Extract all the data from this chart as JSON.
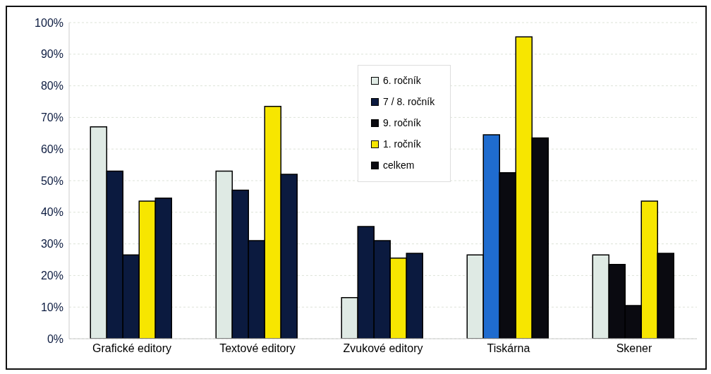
{
  "chart_data": {
    "type": "bar",
    "categories": [
      "Grafické editory",
      "Textové editory",
      "Zvukové editory",
      "Tiskárna",
      "Skener"
    ],
    "series": [
      {
        "name": "6. ročník",
        "color": "#dfeae4",
        "values": [
          67,
          53,
          13,
          26.5,
          26.5
        ]
      },
      {
        "name": "7 / 8. ročník",
        "color": "#0b1a3f",
        "colors": [
          "#0b1a3f",
          "#0b1a3f",
          "#0b1a3f",
          "#1f6ccf",
          "#0a0a10"
        ],
        "values": [
          53,
          47,
          35.5,
          64.5,
          23.5
        ]
      },
      {
        "name": "9. ročník",
        "color": "#0a0a10",
        "colors": [
          "#0b1a3f",
          "#0b1a3f",
          "#0b1a3f",
          "#0a0a10",
          "#0a0a10"
        ],
        "values": [
          26.5,
          31,
          31,
          52.5,
          10.5
        ]
      },
      {
        "name": "1. ročník",
        "color": "#f7e600",
        "values": [
          43.5,
          73.5,
          25.5,
          95.5,
          43.5
        ]
      },
      {
        "name": "celkem",
        "color": "#0a0a10",
        "colors": [
          "#0b1a3f",
          "#0b1a3f",
          "#0b1a3f",
          "#0a0a10",
          "#0a0a10"
        ],
        "values": [
          44.5,
          52,
          27,
          63.5,
          27
        ]
      }
    ],
    "ylim": [
      0,
      100
    ],
    "yticks": [
      {
        "value": 0,
        "label": "0%"
      },
      {
        "value": 10,
        "label": "10%"
      },
      {
        "value": 20,
        "label": "20%"
      },
      {
        "value": 30,
        "label": "30%"
      },
      {
        "value": 40,
        "label": "40%"
      },
      {
        "value": 50,
        "label": "50%"
      },
      {
        "value": 60,
        "label": "60%"
      },
      {
        "value": 70,
        "label": "70%"
      },
      {
        "value": 80,
        "label": "80%"
      },
      {
        "value": 90,
        "label": "90%"
      },
      {
        "value": 100,
        "label": "100%"
      }
    ],
    "grid": "y",
    "legend": "top"
  }
}
